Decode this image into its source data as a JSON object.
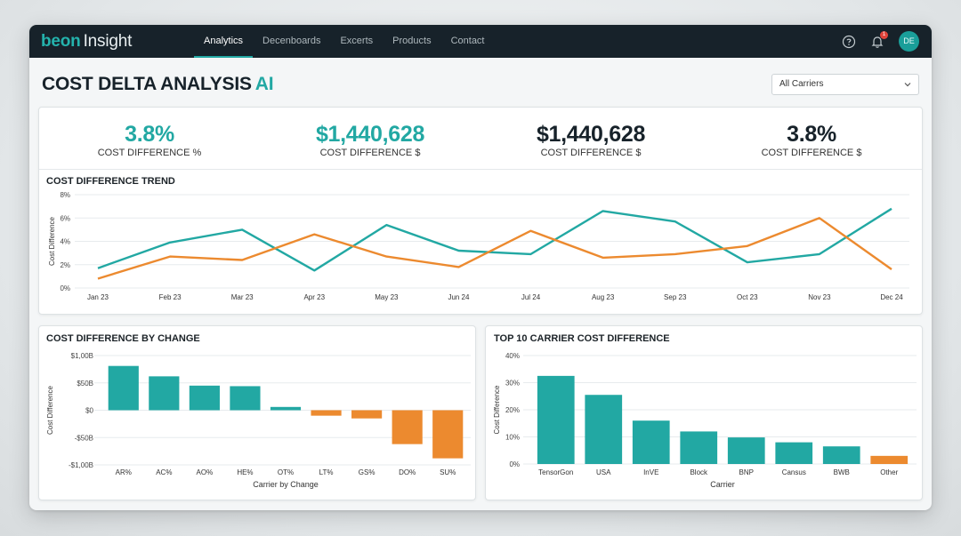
{
  "app": {
    "logo_brand": "beon",
    "logo_product": "Insight"
  },
  "nav": [
    {
      "label": "Analytics",
      "active": true
    },
    {
      "label": "Decenboards",
      "active": false
    },
    {
      "label": "Excerts",
      "active": false
    },
    {
      "label": "Products",
      "active": false
    },
    {
      "label": "Contact",
      "active": false
    }
  ],
  "header": {
    "notification_count": "1",
    "avatar_initials": "DE"
  },
  "page": {
    "title": "COST DELTA ANALYSIS",
    "title_accent": "AI"
  },
  "filter": {
    "selected": "All Carriers"
  },
  "kpis": [
    {
      "value": "3.8%",
      "label": "COST DIFFERENCE %",
      "color": "#22a8a3"
    },
    {
      "value": "$1,440,628",
      "label": "COST DIFFERENCE $",
      "color": "#22a8a3"
    },
    {
      "value": "$1,440,628",
      "label": "COST DIFFERENCE $",
      "color": "#17222a"
    },
    {
      "value": "3.8%",
      "label": "COST DIFFERENCE $",
      "color": "#17222a"
    }
  ],
  "colors": {
    "teal": "#22a8a3",
    "orange": "#ec8a2f"
  },
  "chart_data": [
    {
      "type": "line",
      "title": "COST DIFFERENCE TREND",
      "ylabel": "Cost Difference",
      "xlabel": "",
      "y_tick_labels": [
        "0%",
        "2%",
        "4%",
        "6%",
        "8%"
      ],
      "ylim": [
        0,
        8
      ],
      "x": [
        "Jan 23",
        "Feb 23",
        "Mar 23",
        "Apr 23",
        "May 23",
        "Jun 24",
        "Jul 24",
        "Aug 23",
        "Sep 23",
        "Oct 23",
        "Nov 23",
        "Dec 24"
      ],
      "series": [
        {
          "color": "#22a8a3",
          "values": [
            1.7,
            3.9,
            5.0,
            1.5,
            5.4,
            3.2,
            2.9,
            6.6,
            5.7,
            2.2,
            2.9,
            6.8
          ]
        },
        {
          "color": "#ec8a2f",
          "values": [
            0.8,
            2.7,
            2.4,
            4.6,
            2.7,
            1.8,
            4.9,
            2.6,
            2.9,
            3.6,
            6.0,
            1.6
          ]
        }
      ],
      "grid": true
    },
    {
      "type": "bar",
      "title": "COST DIFFERENCE BY CHANGE",
      "ylabel": "Cost Difference",
      "xlabel": "Carrier by Change",
      "y_tick_labels": [
        "-$1,00B",
        "-$50B",
        "$0",
        "$50B",
        "$1,00B"
      ],
      "ylim": [
        -100,
        100
      ],
      "categories": [
        "AR%",
        "AC%",
        "AO%",
        "HE%",
        "OT%",
        "LT%",
        "GS%",
        "DO%",
        "SU%"
      ],
      "values": [
        81,
        62,
        45,
        44,
        6,
        -10,
        -15,
        -62,
        -88
      ],
      "grid": true
    },
    {
      "type": "bar",
      "title": "TOP 10 CARRIER COST DIFFERENCE",
      "ylabel": "Cost Difference",
      "xlabel": "Carrier",
      "y_tick_labels": [
        "0%",
        "10%",
        "20%",
        "30%",
        "40%"
      ],
      "ylim": [
        0,
        40
      ],
      "categories": [
        "TensorGon",
        "USA",
        "InVE",
        "Block",
        "BNP",
        "Cansus",
        "BWB",
        "Other"
      ],
      "values": [
        32.5,
        25.5,
        16.0,
        12.0,
        9.8,
        8.0,
        6.5,
        3.0
      ],
      "grid": true
    }
  ]
}
